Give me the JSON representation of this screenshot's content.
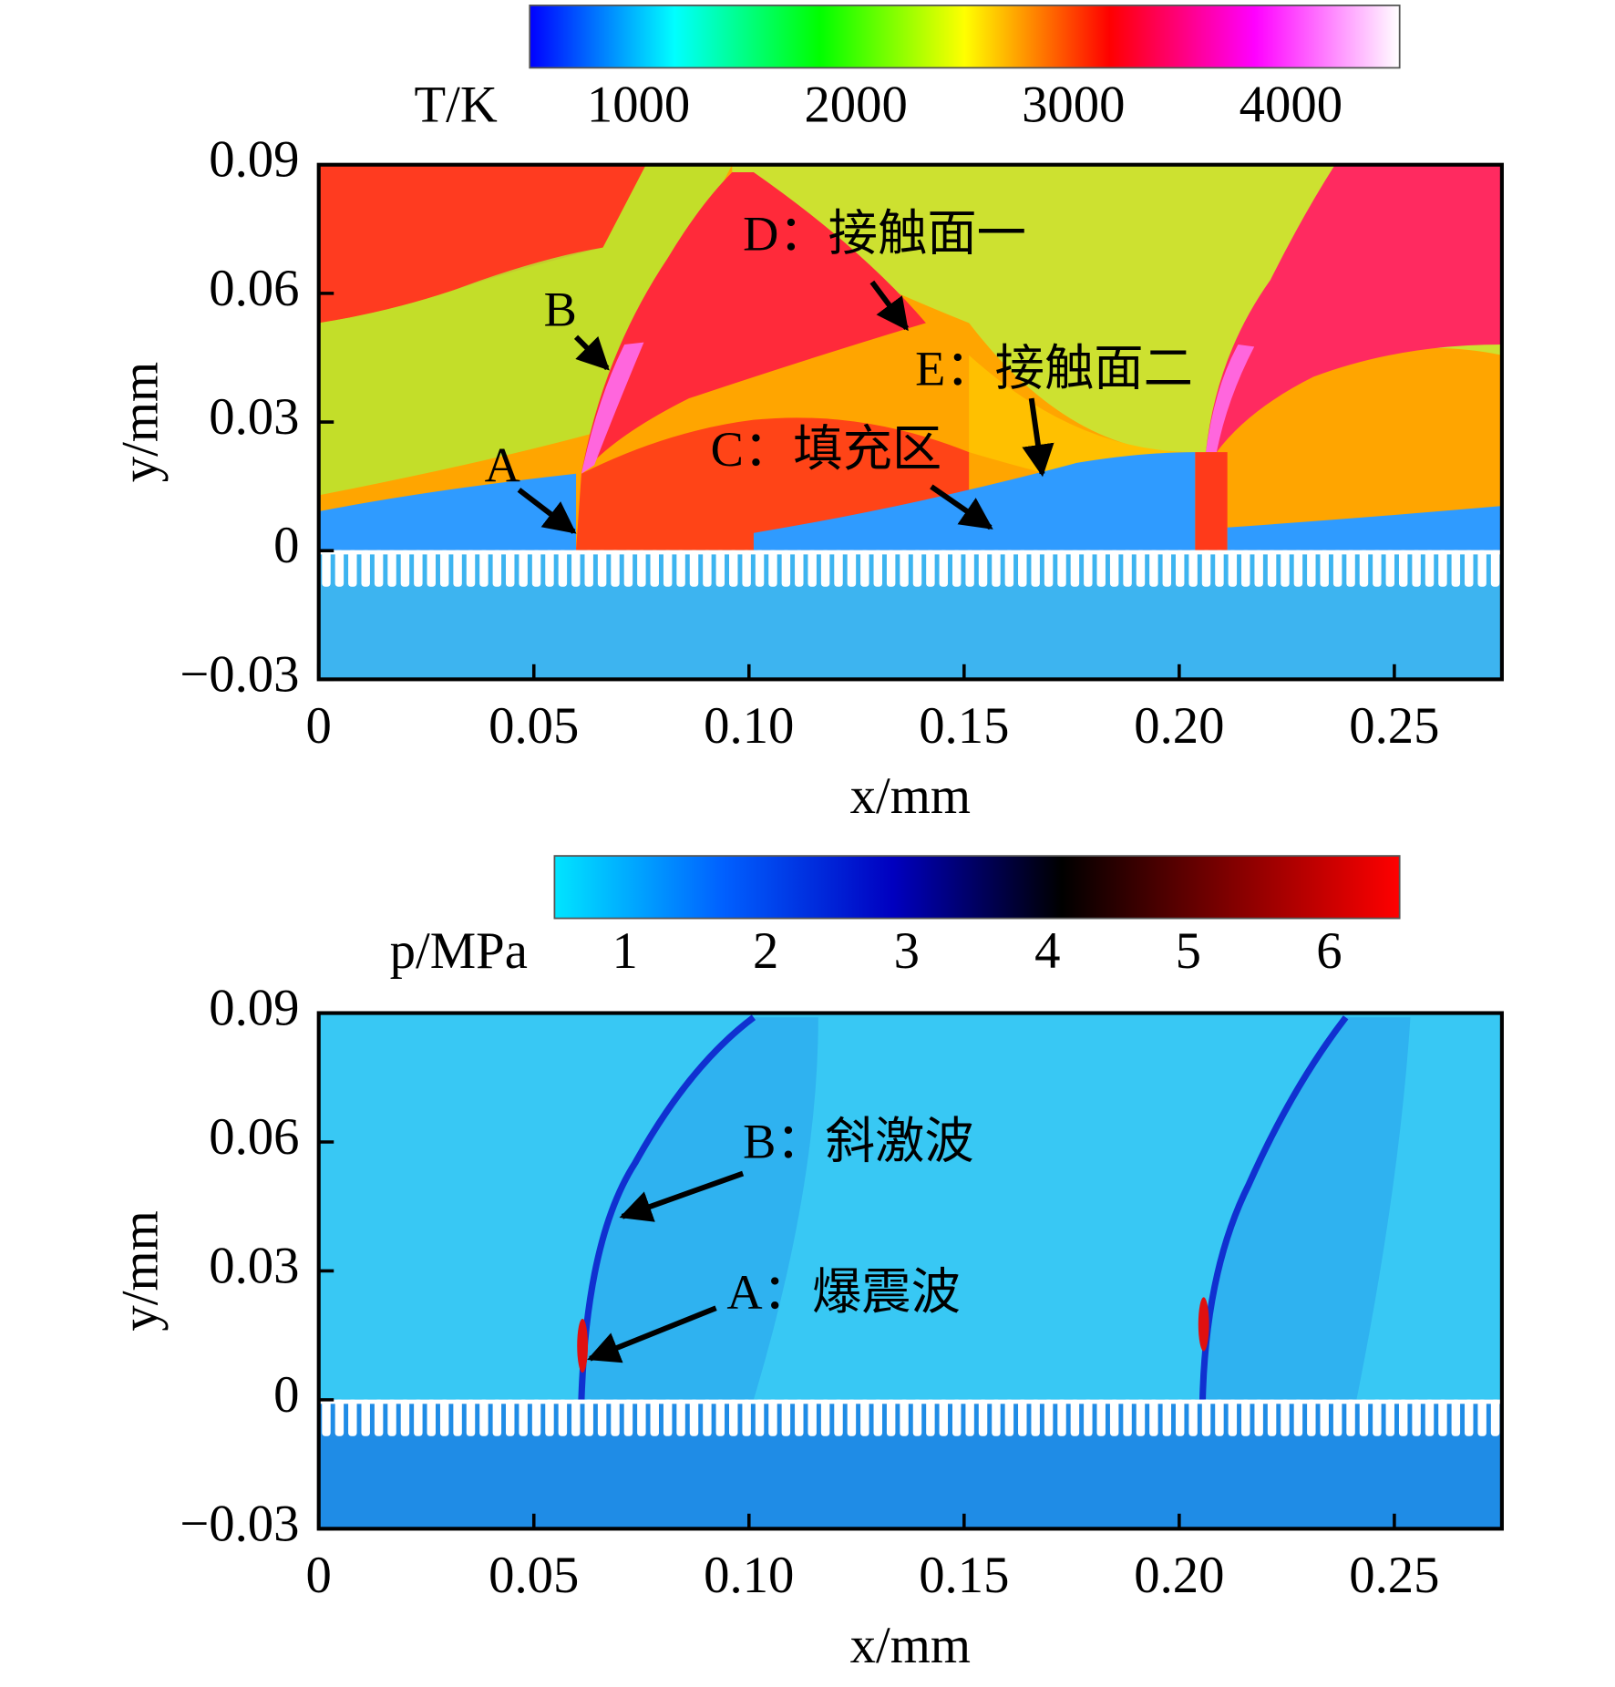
{
  "chart_data": [
    {
      "type": "heatmap",
      "colorbar": {
        "label": "T/K",
        "clim": [
          500,
          4500
        ],
        "ticks": [
          1000,
          2000,
          3000,
          4000
        ],
        "colormap": [
          "#0000ff",
          "#00ffff",
          "#00ff00",
          "#ffff00",
          "#ff0000",
          "#ff00ff",
          "#ffffff"
        ]
      },
      "xlabel": "x/mm",
      "ylabel": "y/mm",
      "xlim": [
        0,
        0.275
      ],
      "xticks": [
        0,
        0.05,
        {
          "value": 0.1,
          "label": "0.10"
        },
        0.15,
        {
          "value": 0.2,
          "label": "0.20"
        },
        0.25
      ],
      "ylim": [
        -0.03,
        0.09
      ],
      "yticks": [
        {
          "value": -0.03,
          "label": "−0.03"
        },
        0,
        0.03,
        0.06,
        0.09
      ],
      "grid": false,
      "annotations": [
        "A",
        "B",
        "C：填充区",
        "D：接触面一",
        "E：接触面二"
      ]
    },
    {
      "type": "heatmap",
      "colorbar": {
        "label": "p/MPa",
        "clim": [
          0.5,
          6.5
        ],
        "ticks": [
          1,
          2,
          3,
          4,
          5,
          6
        ],
        "colormap": [
          "#00e5ff",
          "#0060ff",
          "#0000c0",
          "#000000",
          "#800000",
          "#ff0000"
        ]
      },
      "xlabel": "x/mm",
      "ylabel": "y/mm",
      "xlim": [
        0,
        0.275
      ],
      "xticks": [
        0,
        0.05,
        {
          "value": 0.1,
          "label": "0.10"
        },
        0.15,
        {
          "value": 0.2,
          "label": "0.20"
        },
        0.25
      ],
      "ylim": [
        -0.03,
        0.09
      ],
      "yticks": [
        {
          "value": -0.03,
          "label": "−0.03"
        },
        0,
        0.03,
        0.06,
        0.09
      ],
      "grid": false,
      "annotations": [
        "B：斜激波",
        "A：爆震波"
      ]
    }
  ]
}
